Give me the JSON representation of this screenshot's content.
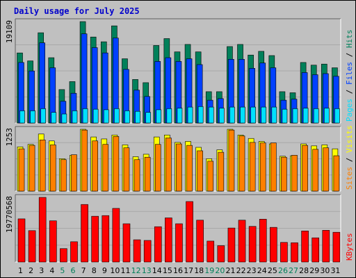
{
  "chart_data": {
    "type": "bar",
    "title": "Daily usage for July 2025",
    "days": [
      "1",
      "2",
      "3",
      "4",
      "5",
      "6",
      "7",
      "8",
      "9",
      "10",
      "11",
      "12",
      "13",
      "14",
      "15",
      "16",
      "17",
      "18",
      "19",
      "20",
      "21",
      "22",
      "23",
      "24",
      "25",
      "26",
      "27",
      "28",
      "29",
      "30",
      "31"
    ],
    "weekend_days": [
      "5",
      "6",
      "12",
      "13",
      "19",
      "20",
      "26",
      "27"
    ],
    "colors": {
      "title": "#0000cc",
      "hits": "#00805a",
      "files": "#0040ff",
      "pages": "#00e0ff",
      "visits": "#ffff00",
      "sites": "#ff8000",
      "kbytes": "#ff0000",
      "weekday_label": "#000000",
      "weekend_label": "#00805a",
      "panel_bg": "#c0c0c0"
    },
    "panels": [
      {
        "name": "hits-files-pages",
        "max_label": "19109",
        "ylim": [
          0,
          19109
        ],
        "legend": [
          {
            "text": "Pages",
            "color": "#00e0ff"
          },
          {
            "text": " / ",
            "color": "#000000"
          },
          {
            "text": "Files",
            "color": "#0040ff"
          },
          {
            "text": " / ",
            "color": "#000000"
          },
          {
            "text": "Hits",
            "color": "#00805a"
          }
        ],
        "series": [
          {
            "name": "Hits",
            "color": "#00805a",
            "values": [
              13200,
              11700,
              17000,
              12300,
              6300,
              7800,
              19100,
              16200,
              15300,
              18300,
              12100,
              8200,
              7600,
              14600,
              15900,
              13400,
              14800,
              13400,
              5900,
              5900,
              14400,
              14800,
              12800,
              13500,
              12700,
              5900,
              5700,
              11400,
              10900,
              11100,
              10400
            ]
          },
          {
            "name": "Files",
            "color": "#0040ff",
            "values": [
              11400,
              9800,
              15100,
              10400,
              4100,
              5600,
              16800,
              14200,
              13200,
              16000,
              10100,
              6200,
              5000,
              11600,
              12300,
              11600,
              12100,
              11000,
              4300,
              4600,
              12000,
              12000,
              10300,
              11300,
              10400,
              4300,
              4500,
              9500,
              9100,
              9300,
              8800
            ]
          },
          {
            "name": "Pages",
            "color": "#00e0ff",
            "values": [
              2300,
              2300,
              2700,
              2000,
              1700,
              2300,
              2700,
              2600,
              2500,
              2700,
              2300,
              2200,
              2000,
              2500,
              2700,
              2800,
              3000,
              3100,
              3000,
              2800,
              3000,
              3000,
              3000,
              3000,
              3000,
              2600,
              2700,
              2800,
              2700,
              2800,
              2700
            ]
          }
        ]
      },
      {
        "name": "visits-sites",
        "max_label": "1253",
        "ylim": [
          0,
          1253
        ],
        "legend": [
          {
            "text": "Sites",
            "color": "#ff8000"
          },
          {
            "text": " / ",
            "color": "#000000"
          },
          {
            "text": "Visits",
            "color": "#ffff00"
          }
        ],
        "series": [
          {
            "name": "Visits",
            "color": "#ffff00",
            "values": [
              897,
              947,
              1157,
              1017,
              657,
              727,
              1253,
              1097,
              1057,
              1137,
              937,
              697,
              747,
              1097,
              1137,
              987,
              1007,
              887,
              657,
              837,
              1253,
              1137,
              1067,
              1007,
              957,
              707,
              717,
              957,
              917,
              937,
              857
            ]
          },
          {
            "name": "Sites",
            "color": "#ff8000",
            "values": [
              857,
              927,
              1037,
              937,
              637,
              737,
              1237,
              1017,
              947,
              1107,
              877,
              637,
              687,
              947,
              1077,
              957,
              927,
              817,
              607,
              787,
              1237,
              1117,
              987,
              977,
              977,
              687,
              727,
              927,
              847,
              877,
              717
            ]
          }
        ]
      },
      {
        "name": "kbytes",
        "max_label": "19770568",
        "ylim": [
          0,
          19770568
        ],
        "legend": [
          {
            "text": "KBytes",
            "color": "#ff0000"
          }
        ],
        "series": [
          {
            "name": "KBytes",
            "color": "#ff0000",
            "values": [
              13200000,
              9600000,
              19770568,
              12600000,
              4100000,
              6200000,
              17600000,
              14000000,
              14200000,
              16400000,
              11700000,
              6800000,
              6600000,
              10800000,
              13500000,
              11700000,
              18500000,
              12800000,
              6400000,
              5000000,
              10400000,
              12800000,
              10900000,
              13100000,
              10600000,
              6000000,
              5900000,
              9500000,
              7400000,
              9700000,
              9100000
            ]
          }
        ]
      }
    ]
  }
}
